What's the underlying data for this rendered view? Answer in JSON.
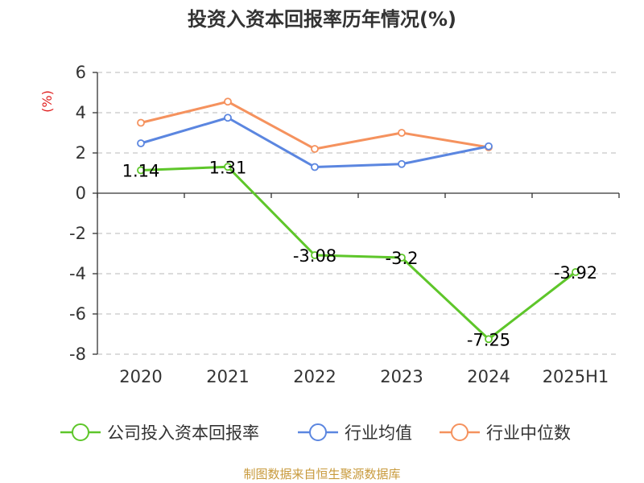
{
  "chart_data": {
    "type": "line",
    "title": "投资入资本回报率历年情况(%)",
    "ylabel": "(%)",
    "categories": [
      "2020",
      "2021",
      "2022",
      "2023",
      "2024",
      "2025H1"
    ],
    "ylim": [
      -8,
      6
    ],
    "yticks": [
      6,
      4,
      2,
      0,
      -2,
      -4,
      -6,
      -8
    ],
    "grid": true,
    "legend_position": "bottom",
    "series": [
      {
        "name": "公司投入资本回报率",
        "color": "#5ec62a",
        "values": [
          1.14,
          1.31,
          -3.08,
          -3.2,
          -7.25,
          -3.92
        ],
        "labels": [
          "1.14",
          "1.31",
          "-3.08",
          "-3.2",
          "-7.25",
          "-3.92"
        ]
      },
      {
        "name": "行业均值",
        "color": "#5b86e0",
        "values": [
          2.48,
          3.75,
          1.3,
          1.45,
          2.33,
          null
        ]
      },
      {
        "name": "行业中位数",
        "color": "#f5925e",
        "values": [
          3.5,
          4.55,
          2.2,
          3.0,
          2.28,
          null
        ]
      }
    ],
    "source": "制图数据来自恒生聚源数据库"
  }
}
